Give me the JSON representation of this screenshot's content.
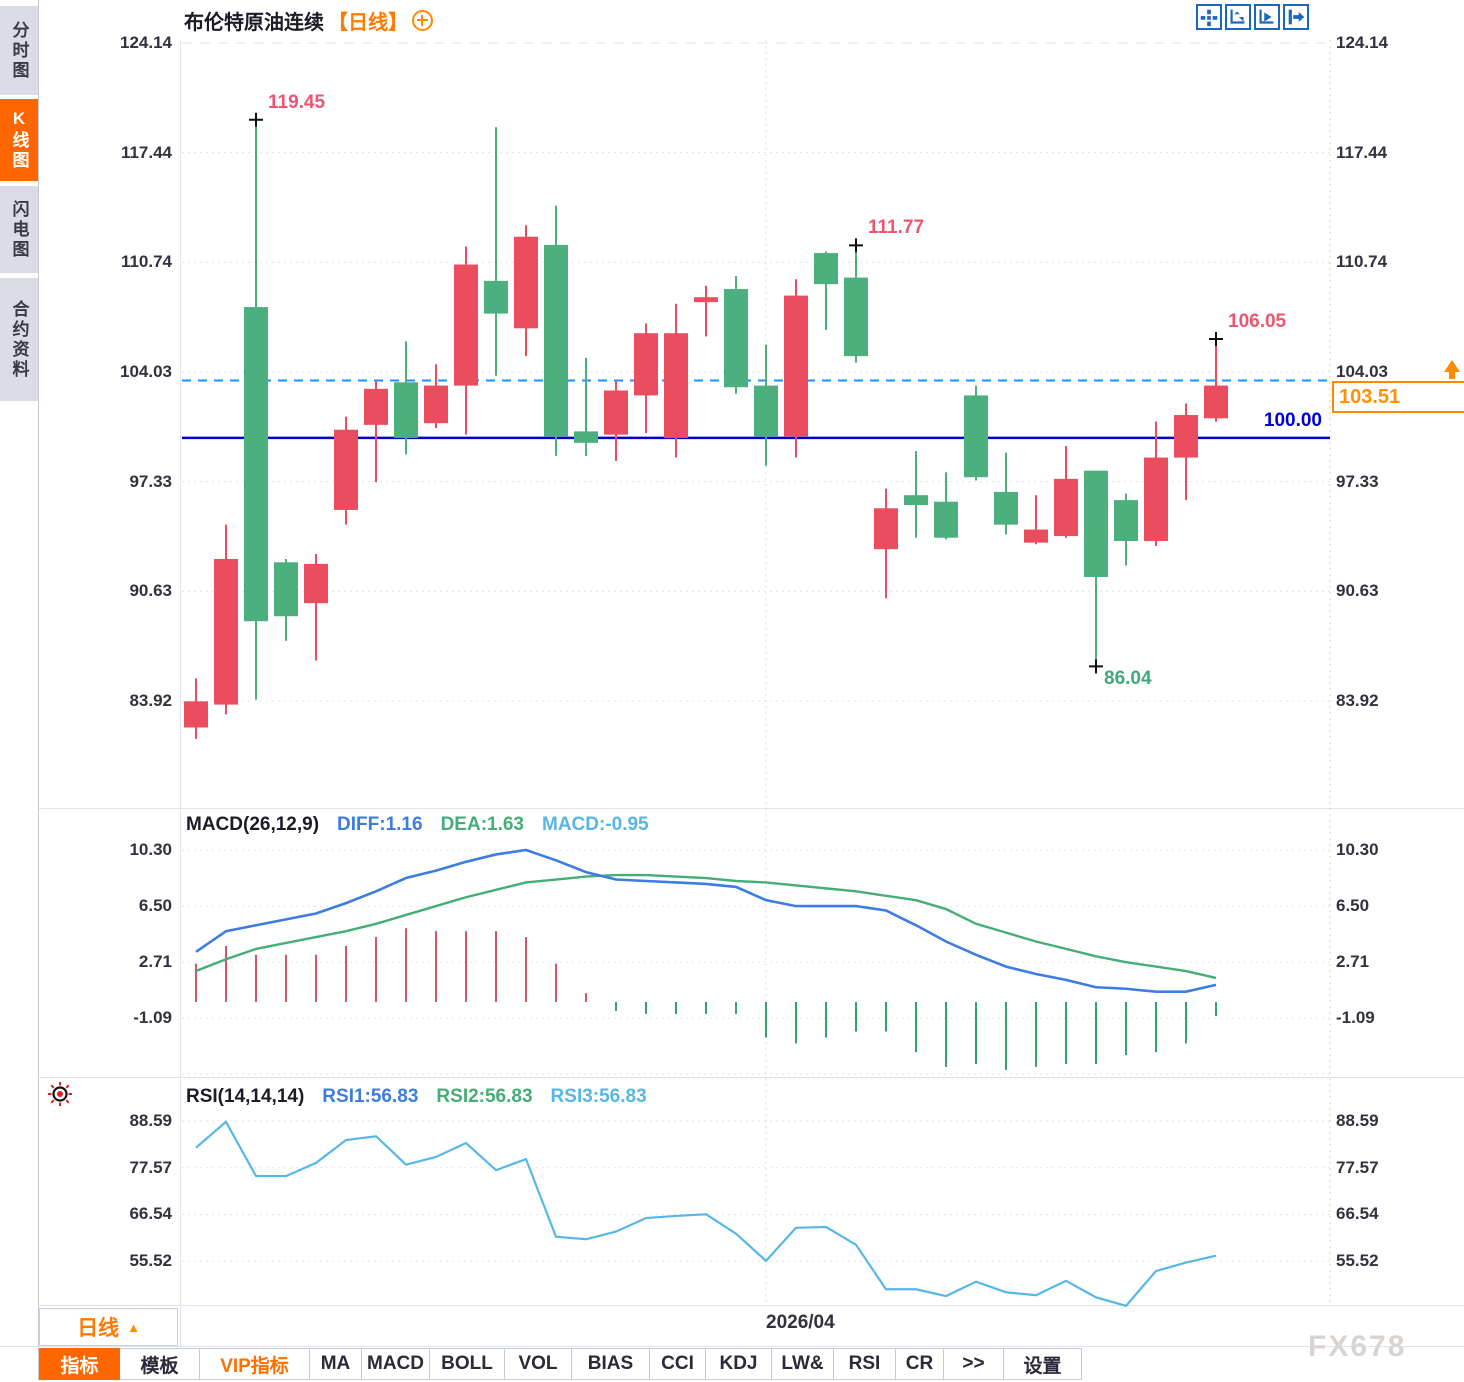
{
  "sidebar": {
    "tabs": [
      {
        "label": "分时图",
        "active": false
      },
      {
        "label": "K线图",
        "active": true
      },
      {
        "label": "闪电图",
        "active": false
      },
      {
        "label": "合约资料",
        "active": false
      }
    ]
  },
  "header": {
    "title": "布伦特原油连续",
    "period_tag": "【日线】",
    "toolbar_icons": [
      "move-crosshair-icon",
      "fit-x-axis-icon",
      "fit-y-axis-icon",
      "pan-right-icon"
    ]
  },
  "colors": {
    "candle_up": "#4bb07e",
    "candle_down": "#ea4d5e",
    "hist_up": "#d0566b",
    "hist_down": "#33a06e",
    "diff_line": "#3d7de2",
    "dea_line": "#45ad76",
    "cyan_line": "#56b7e7",
    "ref_line_blue": "#0000cc",
    "dashed_line_blue": "#1f8fff",
    "annotation_red": "#ee5571",
    "annotation_green": "#3fa97c",
    "accent_orange": "#ff6600"
  },
  "chart_data": [
    {
      "id": "price",
      "type": "candlestick",
      "title": "布伦特原油连续",
      "period": "日线",
      "y_ticks": [
        124.14,
        117.44,
        110.74,
        104.03,
        97.33,
        90.63,
        83.92
      ],
      "ylim": [
        80.0,
        124.14
      ],
      "candles": [
        [
          83.9,
          85.3,
          81.6,
          82.3
        ],
        [
          92.6,
          94.7,
          83.1,
          83.7
        ],
        [
          88.8,
          119.45,
          84.0,
          108.0
        ],
        [
          89.1,
          92.6,
          87.6,
          92.4
        ],
        [
          92.3,
          92.9,
          86.4,
          89.9
        ],
        [
          100.5,
          101.3,
          94.7,
          95.6
        ],
        [
          103.0,
          103.5,
          97.3,
          100.8
        ],
        [
          100.0,
          105.9,
          99.0,
          103.4
        ],
        [
          103.2,
          104.5,
          100.6,
          100.9
        ],
        [
          110.6,
          111.7,
          100.2,
          103.2
        ],
        [
          107.6,
          119.0,
          103.8,
          109.6
        ],
        [
          112.3,
          113.0,
          105.0,
          106.7
        ],
        [
          100.1,
          114.2,
          98.9,
          111.8
        ],
        [
          99.7,
          104.9,
          98.9,
          100.4
        ],
        [
          102.9,
          103.5,
          98.6,
          100.2
        ],
        [
          106.4,
          107.0,
          100.3,
          102.6
        ],
        [
          106.4,
          108.2,
          98.8,
          100.0
        ],
        [
          108.6,
          109.3,
          106.2,
          108.3
        ],
        [
          103.1,
          109.9,
          102.7,
          109.1
        ],
        [
          100.1,
          105.7,
          98.3,
          103.2
        ],
        [
          108.7,
          109.7,
          98.8,
          100.1
        ],
        [
          109.4,
          111.4,
          106.6,
          111.3
        ],
        [
          105.0,
          111.77,
          104.6,
          109.8
        ],
        [
          95.7,
          96.9,
          90.2,
          93.2
        ],
        [
          95.9,
          99.2,
          93.9,
          96.5
        ],
        [
          93.9,
          97.9,
          93.8,
          96.1
        ],
        [
          97.6,
          103.2,
          97.4,
          102.6
        ],
        [
          94.7,
          99.1,
          94.1,
          96.7
        ],
        [
          94.4,
          96.5,
          93.5,
          93.6
        ],
        [
          97.5,
          99.5,
          93.9,
          94.0
        ],
        [
          91.5,
          98.0,
          86.04,
          98.0
        ],
        [
          93.7,
          96.6,
          92.2,
          96.2
        ],
        [
          98.8,
          101.0,
          93.4,
          93.7
        ],
        [
          101.4,
          102.1,
          96.2,
          98.8
        ],
        [
          103.2,
          106.05,
          101.0,
          101.2
        ]
      ],
      "ref_lines": [
        {
          "price": 100.0,
          "label": "100.00",
          "style": "solid"
        },
        {
          "price": 103.51,
          "label": "",
          "style": "dashed"
        }
      ],
      "annotations": [
        {
          "text": "119.45",
          "candle": 2,
          "anchor": "high",
          "tone": "red"
        },
        {
          "text": "111.77",
          "candle": 22,
          "anchor": "high",
          "tone": "red"
        },
        {
          "text": "106.05",
          "candle": 34,
          "anchor": "high",
          "tone": "red"
        },
        {
          "text": "86.04",
          "candle": 30,
          "anchor": "low",
          "tone": "green"
        }
      ],
      "last_price": "103.51",
      "x_tick": {
        "label": "2026/04",
        "candle": 19
      }
    },
    {
      "id": "macd",
      "type": "line+histogram",
      "label": "MACD(26,12,9)",
      "legend": [
        {
          "text": "DIFF:1.16",
          "color": "blue"
        },
        {
          "text": "DEA:1.63",
          "color": "green"
        },
        {
          "text": "MACD:-0.95",
          "color": "cyan"
        }
      ],
      "y_ticks": [
        10.3,
        6.5,
        2.71,
        -1.09
      ],
      "diff": [
        3.4,
        4.8,
        5.2,
        5.6,
        6.0,
        6.7,
        7.5,
        8.4,
        8.9,
        9.5,
        10.0,
        10.3,
        9.6,
        8.8,
        8.3,
        8.2,
        8.1,
        8.0,
        7.8,
        6.9,
        6.5,
        6.5,
        6.5,
        6.2,
        5.2,
        4.1,
        3.2,
        2.4,
        1.9,
        1.5,
        1.0,
        0.9,
        0.7,
        0.7,
        1.16
      ],
      "dea": [
        2.1,
        2.9,
        3.6,
        4.0,
        4.4,
        4.8,
        5.3,
        5.9,
        6.5,
        7.1,
        7.6,
        8.1,
        8.3,
        8.5,
        8.6,
        8.6,
        8.5,
        8.4,
        8.2,
        8.1,
        7.9,
        7.7,
        7.5,
        7.2,
        6.9,
        6.3,
        5.3,
        4.7,
        4.1,
        3.6,
        3.1,
        2.7,
        2.4,
        2.1,
        1.63
      ],
      "histogram_rule": "2*(diff-dea)"
    },
    {
      "id": "rsi",
      "type": "line",
      "label": "RSI(14,14,14)",
      "legend": [
        {
          "text": "RSI1:56.83",
          "color": "blue"
        },
        {
          "text": "RSI2:56.83",
          "color": "green"
        },
        {
          "text": "RSI3:56.83",
          "color": "cyan"
        }
      ],
      "y_ticks": [
        88.59,
        77.57,
        66.54,
        55.52
      ],
      "rsi": [
        82.3,
        88.4,
        75.6,
        75.6,
        78.7,
        84.1,
        85.0,
        78.3,
        80.1,
        83.4,
        77.0,
        79.6,
        61.3,
        60.7,
        62.5,
        65.7,
        66.2,
        66.6,
        62.0,
        55.6,
        63.4,
        63.6,
        59.4,
        48.9,
        48.9,
        47.3,
        50.7,
        48.2,
        47.5,
        50.9,
        47.0,
        45.0,
        53.2,
        55.2,
        56.83
      ]
    }
  ],
  "bottom_bar": {
    "period_button": {
      "label": "日线",
      "arrow": "▲"
    },
    "tabs": [
      {
        "label": "指标",
        "style": "active"
      },
      {
        "label": "模板",
        "style": "normal"
      },
      {
        "label": "VIP指标",
        "style": "vip"
      },
      {
        "label": "MA",
        "style": "normal"
      },
      {
        "label": "MACD",
        "style": "normal"
      },
      {
        "label": "BOLL",
        "style": "normal"
      },
      {
        "label": "VOL",
        "style": "normal"
      },
      {
        "label": "BIAS",
        "style": "normal"
      },
      {
        "label": "CCI",
        "style": "normal"
      },
      {
        "label": "KDJ",
        "style": "normal"
      },
      {
        "label": "LW&",
        "style": "normal"
      },
      {
        "label": "RSI",
        "style": "normal"
      },
      {
        "label": "CR",
        "style": "normal"
      },
      {
        "label": ">>",
        "style": "normal"
      },
      {
        "label": "设置",
        "style": "normal"
      }
    ]
  },
  "watermark": "FX678"
}
